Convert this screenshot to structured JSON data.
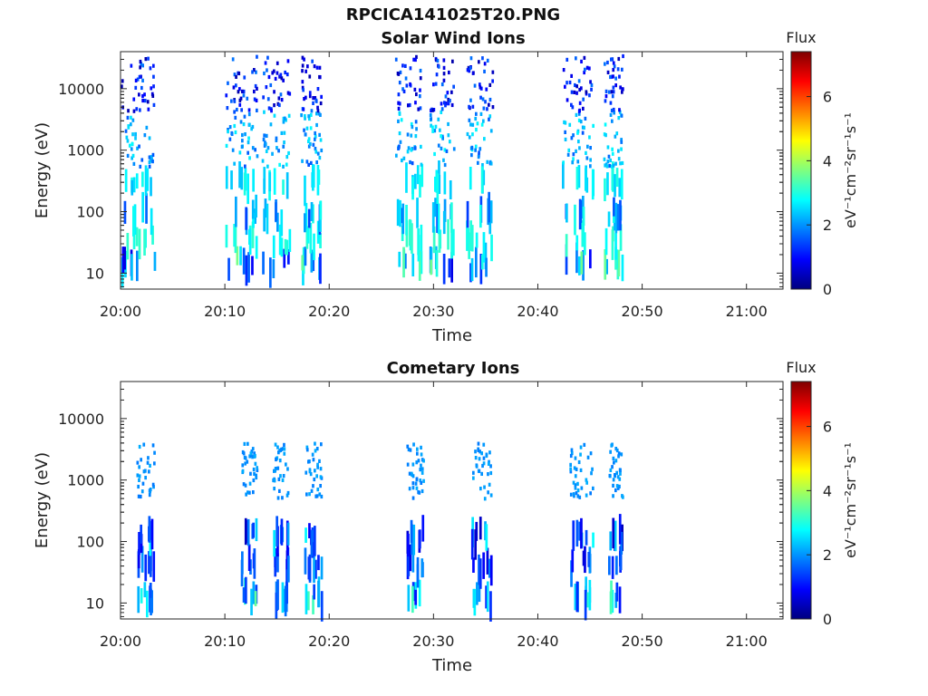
{
  "figure_title": "RPCICA141025T20.PNG",
  "colors": {
    "axis": "#262626",
    "colormap": "jet",
    "colormap_stops": [
      "#00007f",
      "#0000ff",
      "#007fff",
      "#00ffff",
      "#7fff7f",
      "#ffff00",
      "#ff7f00",
      "#ff0000",
      "#7f0000"
    ]
  },
  "chart_data": [
    {
      "type": "heatmap",
      "title": "Solar Wind Ions",
      "xlabel": "Time",
      "ylabel": "Energy (eV)",
      "x_ticks": [
        "20:00",
        "20:10",
        "20:20",
        "20:30",
        "20:40",
        "20:50",
        "21:00"
      ],
      "xlim_minutes": [
        0,
        63.5
      ],
      "y_ticks": [
        "10",
        "100",
        "1000",
        "10000"
      ],
      "y_scale": "log",
      "ylim_eV": [
        5.5,
        40000
      ],
      "colorbar": {
        "label": "Flux",
        "units": "eV⁻¹cm⁻²sr⁻¹s⁻¹",
        "ticks": [
          "0",
          "2",
          "4",
          "6"
        ],
        "range": [
          0,
          7.4
        ]
      },
      "burst_windows_minutes": [
        [
          0.0,
          3.2
        ],
        [
          10.0,
          13.0
        ],
        [
          13.5,
          16.2
        ],
        [
          17.2,
          19.2
        ],
        [
          26.3,
          28.8
        ],
        [
          29.6,
          31.9
        ],
        [
          33.1,
          35.6
        ],
        [
          42.2,
          45.2
        ],
        [
          46.2,
          48.1
        ]
      ],
      "bands": [
        {
          "energy_eV": 14,
          "value_range": [
            0.7,
            3.7
          ]
        },
        {
          "energy_eV": 35,
          "value_range": [
            2.7,
            3.2
          ]
        },
        {
          "energy_eV": 90,
          "value_range": [
            1.3,
            3.0
          ]
        },
        {
          "energy_eV": 300,
          "value_range": [
            2.3,
            3.0
          ]
        },
        {
          "energy_eV": 1500,
          "value_range": [
            1.5,
            2.8
          ]
        },
        {
          "energy_eV": 12000,
          "value_range": [
            0.3,
            1.8
          ]
        }
      ]
    },
    {
      "type": "heatmap",
      "title": "Cometary Ions",
      "xlabel": "Time",
      "ylabel": "Energy (eV)",
      "x_ticks": [
        "20:00",
        "20:10",
        "20:20",
        "20:30",
        "20:40",
        "20:50",
        "21:00"
      ],
      "xlim_minutes": [
        0,
        63.5
      ],
      "y_ticks": [
        "10",
        "100",
        "1000",
        "10000"
      ],
      "y_scale": "log",
      "ylim_eV": [
        5.5,
        40000
      ],
      "colorbar": {
        "label": "Flux",
        "units": "eV⁻¹cm⁻²sr⁻¹s⁻¹",
        "ticks": [
          "0",
          "2",
          "4",
          "6"
        ],
        "range": [
          0,
          7.4
        ]
      },
      "burst_windows_minutes": [
        [
          1.5,
          3.2
        ],
        [
          11.5,
          13.0
        ],
        [
          14.5,
          16.0
        ],
        [
          17.6,
          19.2
        ],
        [
          27.4,
          29.0
        ],
        [
          33.6,
          35.5
        ],
        [
          43.0,
          45.2
        ],
        [
          46.7,
          48.1
        ]
      ],
      "bands": [
        {
          "energy_eV": 12,
          "value_range": [
            0.8,
            3.5
          ]
        },
        {
          "energy_eV": 40,
          "value_range": [
            0.6,
            2.2
          ]
        },
        {
          "energy_eV": 120,
          "value_range": [
            0.4,
            2.8
          ]
        },
        {
          "energy_eV": 1400,
          "value_range": [
            1.8,
            2.2
          ]
        }
      ]
    }
  ]
}
